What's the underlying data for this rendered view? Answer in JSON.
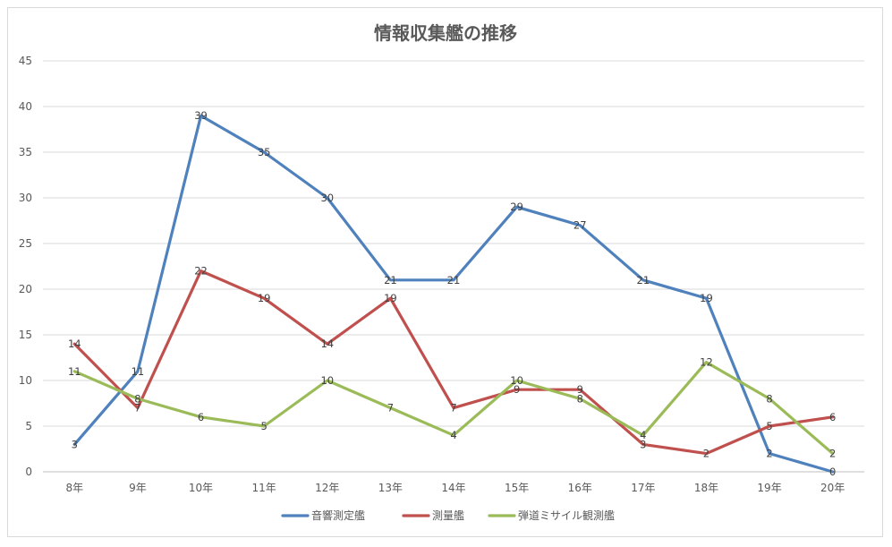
{
  "chart_data": {
    "type": "line",
    "title": "情報収集艦の推移",
    "xlabel": "",
    "ylabel": "",
    "categories": [
      "8年",
      "9年",
      "10年",
      "11年",
      "12年",
      "13年",
      "14年",
      "15年",
      "16年",
      "17年",
      "18年",
      "19年",
      "20年"
    ],
    "ylim": [
      0,
      45
    ],
    "yticks": [
      "0",
      "5",
      "10",
      "15",
      "20",
      "25",
      "30",
      "35",
      "40",
      "45"
    ],
    "grid": true,
    "legend": "bottom",
    "series": [
      {
        "name": "音響測定艦",
        "color": "#4f81bd",
        "values": [
          3,
          11,
          39,
          35,
          30,
          21,
          21,
          29,
          27,
          21,
          19,
          2,
          0
        ]
      },
      {
        "name": "測量艦",
        "color": "#c0504d",
        "values": [
          14,
          7,
          22,
          19,
          14,
          19,
          7,
          9,
          9,
          3,
          2,
          5,
          6
        ]
      },
      {
        "name": "弾道ミサイル観測艦",
        "color": "#9bbb59",
        "values": [
          11,
          8,
          6,
          5,
          10,
          7,
          4,
          10,
          8,
          4,
          12,
          8,
          2
        ]
      }
    ]
  }
}
